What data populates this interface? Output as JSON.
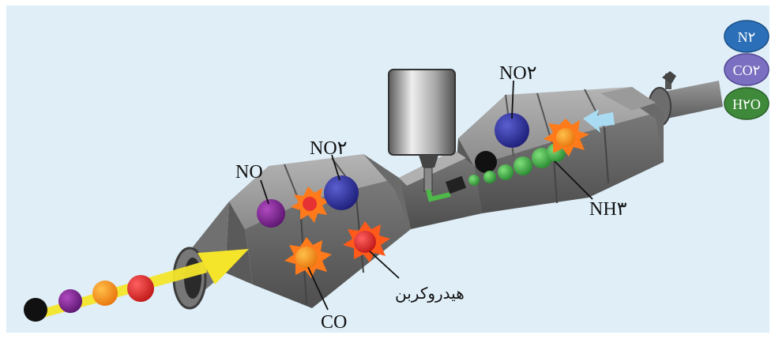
{
  "labels": {
    "no": "NO",
    "no2_left": "NO۲",
    "no2_right": "NO۲",
    "nh3": "NH۳",
    "co": "CO",
    "hydrocarbon": "هیدروکربن"
  },
  "legend": [
    {
      "text": "N۲",
      "color": "#2a6fb8"
    },
    {
      "text": "CO۲",
      "color": "#7a6fc0"
    },
    {
      "text": "H۲O",
      "color": "#3f8a3a"
    }
  ],
  "colors": {
    "background": "#dfeef7",
    "body_metal": "#8c8c8c",
    "exhaust_flow": "#f4e52a",
    "nh3_stream": "#3fae4a"
  }
}
